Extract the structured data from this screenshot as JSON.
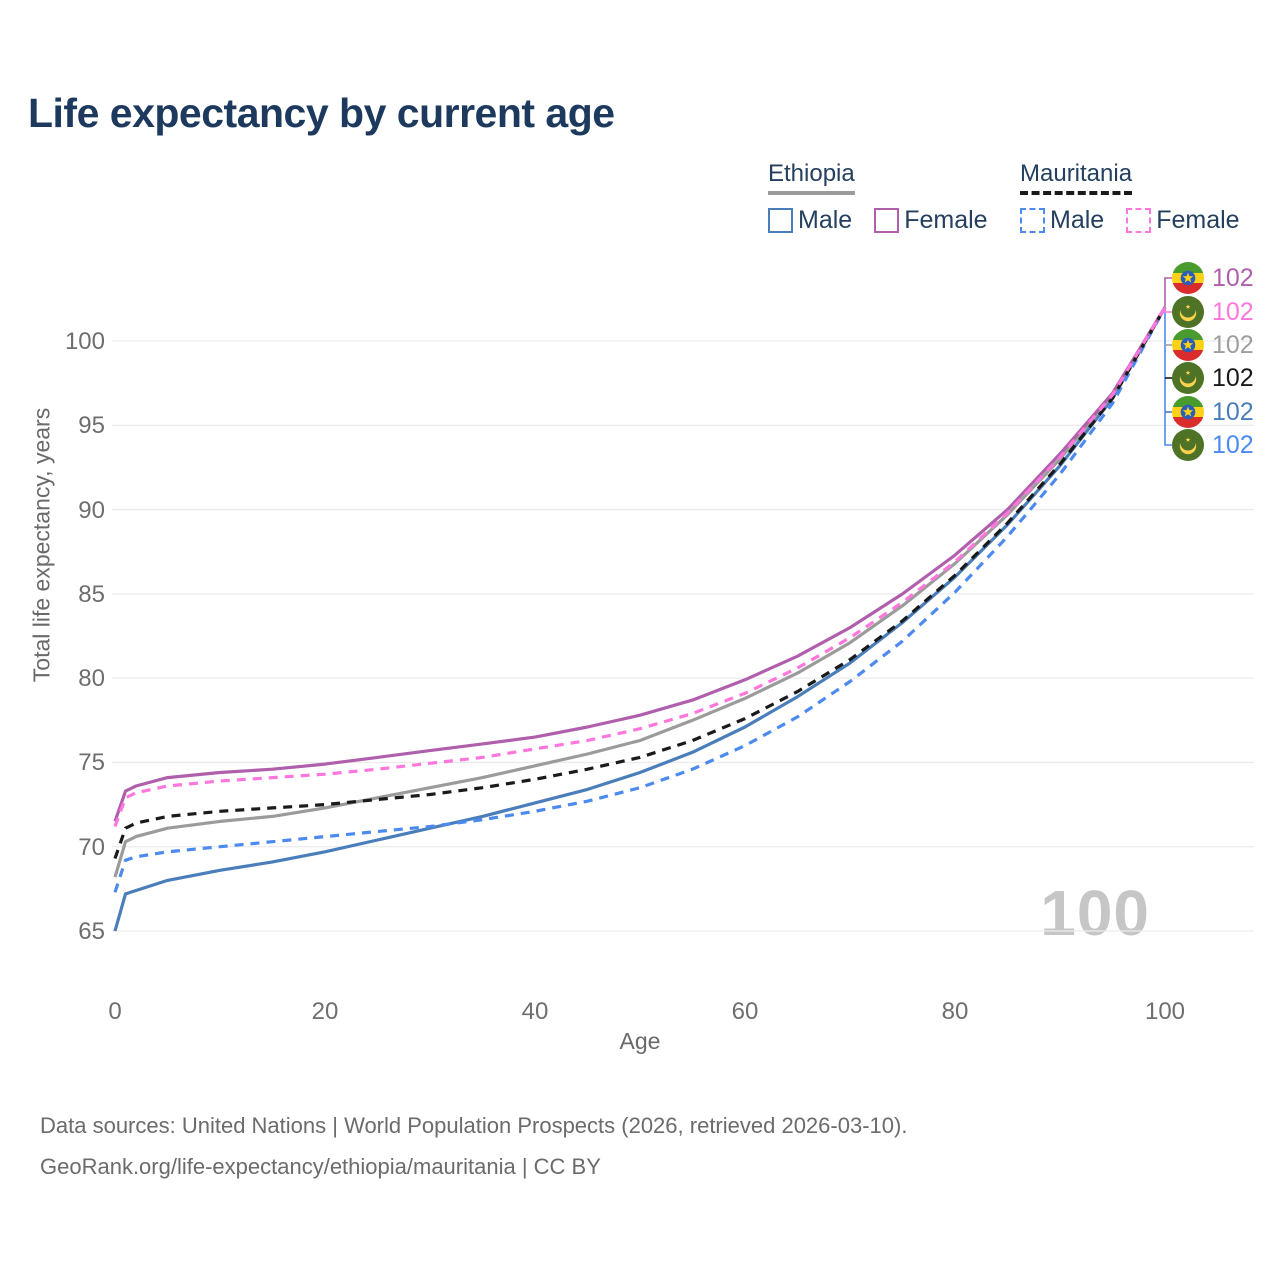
{
  "title": "Life expectancy by current age",
  "legend": {
    "groups": [
      {
        "country": "Ethiopia",
        "line_style": "solid",
        "underline_color": "#9b9b9b",
        "entries": [
          {
            "label": "Male",
            "color": "#4a7ebb",
            "dashed": false
          },
          {
            "label": "Female",
            "color": "#b05fac",
            "dashed": false
          }
        ]
      },
      {
        "country": "Mauritania",
        "line_style": "dashed",
        "underline_color": "#1a1a1a",
        "entries": [
          {
            "label": "Male",
            "color": "#4d8af0",
            "dashed": true
          },
          {
            "label": "Female",
            "color": "#ff77dd",
            "dashed": true
          }
        ]
      }
    ]
  },
  "chart_data": {
    "type": "line",
    "title": "Life expectancy by current age",
    "x_axis_label": "Age",
    "y_axis_label": "Total life expectancy, years",
    "xlim": [
      0,
      100
    ],
    "ylim": [
      65,
      102
    ],
    "x_ticks": [
      0,
      20,
      40,
      60,
      80,
      100
    ],
    "y_ticks": [
      65,
      70,
      75,
      80,
      85,
      90,
      95,
      100
    ],
    "grid": "horizontal",
    "legend_position": "top-right",
    "watermark": "100",
    "ages": [
      0,
      1,
      2,
      5,
      10,
      15,
      20,
      25,
      30,
      35,
      40,
      45,
      50,
      55,
      60,
      65,
      70,
      75,
      80,
      85,
      90,
      95,
      100
    ],
    "series": [
      {
        "name": "Ethiopia Female",
        "country": "Ethiopia",
        "sex": "Female",
        "color": "#b05fac",
        "dashed": false,
        "values": [
          71.5,
          73.3,
          73.6,
          74.1,
          74.4,
          74.6,
          74.9,
          75.3,
          75.7,
          76.1,
          76.5,
          77.1,
          77.8,
          78.7,
          79.9,
          81.3,
          83.0,
          85.0,
          87.3,
          90.0,
          93.3,
          96.9,
          102
        ]
      },
      {
        "name": "Mauritania Female",
        "country": "Mauritania",
        "sex": "Female",
        "color": "#ff77dd",
        "dashed": true,
        "values": [
          71.2,
          72.9,
          73.2,
          73.6,
          73.9,
          74.1,
          74.3,
          74.6,
          74.95,
          75.3,
          75.8,
          76.3,
          77.0,
          77.9,
          79.1,
          80.6,
          82.4,
          84.5,
          86.9,
          89.8,
          93.1,
          96.8,
          102
        ]
      },
      {
        "name": "Ethiopia (total)",
        "country": "Ethiopia",
        "sex": "Total",
        "color": "#9b9b9b",
        "dashed": false,
        "values": [
          68.2,
          70.3,
          70.6,
          71.1,
          71.5,
          71.8,
          72.3,
          72.9,
          73.5,
          74.1,
          74.8,
          75.5,
          76.3,
          77.5,
          78.8,
          80.3,
          82.1,
          84.3,
          86.8,
          89.7,
          93.0,
          96.8,
          102
        ]
      },
      {
        "name": "Mauritania (total)",
        "country": "Mauritania",
        "sex": "Total",
        "color": "#1a1a1a",
        "dashed": true,
        "values": [
          69.3,
          71.1,
          71.4,
          71.8,
          72.1,
          72.3,
          72.5,
          72.8,
          73.1,
          73.5,
          74.0,
          74.6,
          75.3,
          76.3,
          77.6,
          79.2,
          81.1,
          83.4,
          86.1,
          89.2,
          92.7,
          96.6,
          102
        ]
      },
      {
        "name": "Ethiopia Male",
        "country": "Ethiopia",
        "sex": "Male",
        "color": "#4a7ebb",
        "dashed": false,
        "values": [
          65.0,
          67.2,
          67.4,
          68.0,
          68.6,
          69.1,
          69.7,
          70.4,
          71.1,
          71.8,
          72.6,
          73.4,
          74.4,
          75.6,
          77.1,
          78.9,
          80.9,
          83.3,
          86.0,
          89.1,
          92.6,
          96.6,
          102
        ]
      },
      {
        "name": "Mauritania Male",
        "country": "Mauritania",
        "sex": "Male",
        "color": "#4d8af0",
        "dashed": true,
        "values": [
          67.3,
          69.2,
          69.4,
          69.7,
          70.0,
          70.3,
          70.6,
          70.9,
          71.2,
          71.6,
          72.1,
          72.7,
          73.5,
          74.6,
          76.0,
          77.7,
          79.8,
          82.2,
          85.1,
          88.4,
          92.1,
          96.3,
          102
        ]
      }
    ],
    "end_labels": [
      {
        "flag": "ethiopia",
        "value": "102",
        "color": "#b05fac"
      },
      {
        "flag": "mauritania",
        "value": "102",
        "color": "#ff77dd"
      },
      {
        "flag": "ethiopia",
        "value": "102",
        "color": "#9e9e9e"
      },
      {
        "flag": "mauritania",
        "value": "102",
        "color": "#1a1a1a"
      },
      {
        "flag": "ethiopia",
        "value": "102",
        "color": "#4a7ebb"
      },
      {
        "flag": "mauritania",
        "value": "102",
        "color": "#4d8af0"
      }
    ]
  },
  "footer": {
    "line1": "Data sources: United Nations | World Population Prospects (2026, retrieved 2026-03-10).",
    "line2": "GeoRank.org/life-expectancy/ethiopia/mauritania | CC BY"
  }
}
